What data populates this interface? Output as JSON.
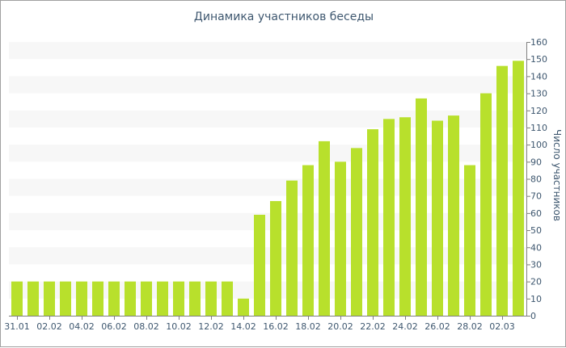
{
  "chart_data": {
    "type": "bar",
    "title": "Динамика участников беседы",
    "ylabel": "Число участников",
    "xlabel": "",
    "ylim": [
      0,
      160
    ],
    "ytick_step": 10,
    "grid": "alternating bands",
    "y_axis_side": "right",
    "bar_color": "#b8e02c",
    "band_color": "#f7f7f7",
    "text_color": "#3e576f",
    "categories": [
      "31.01",
      "01.02",
      "02.02",
      "03.02",
      "04.02",
      "05.02",
      "06.02",
      "07.02",
      "08.02",
      "09.02",
      "10.02",
      "11.02",
      "12.02",
      "13.02",
      "14.02",
      "15.02",
      "16.02",
      "17.02",
      "18.02",
      "19.02",
      "20.02",
      "21.02",
      "22.02",
      "23.02",
      "24.02",
      "25.02",
      "26.02",
      "27.02",
      "28.02",
      "01.03",
      "02.03",
      "03.03"
    ],
    "x_tick_labels": [
      "31.01",
      "02.02",
      "04.02",
      "06.02",
      "08.02",
      "10.02",
      "12.02",
      "14.02",
      "16.02",
      "18.02",
      "20.02",
      "22.02",
      "24.02",
      "26.02",
      "28.02",
      "02.03"
    ],
    "values": [
      20,
      20,
      20,
      20,
      20,
      20,
      20,
      20,
      20,
      20,
      20,
      20,
      20,
      20,
      10,
      59,
      67,
      79,
      88,
      102,
      90,
      98,
      109,
      115,
      116,
      127,
      114,
      117,
      88,
      130,
      146,
      149
    ]
  }
}
